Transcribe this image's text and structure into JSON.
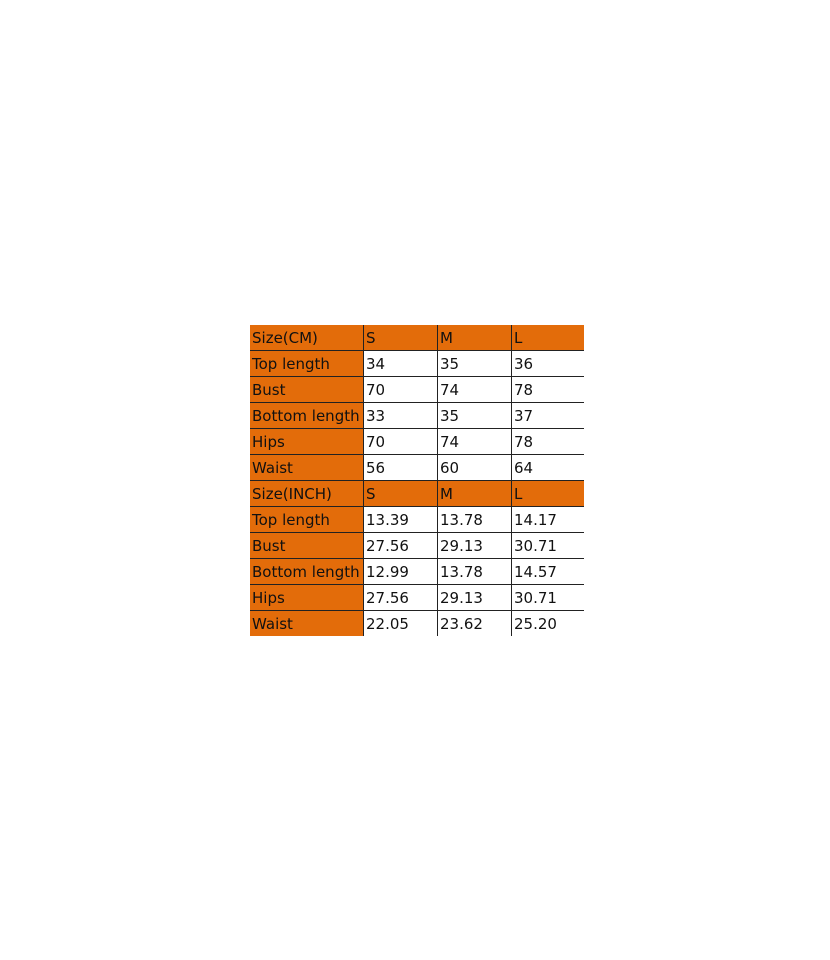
{
  "colors": {
    "header": "#E36C0A"
  },
  "sections": [
    {
      "header": [
        "Size(CM)",
        "S",
        "M",
        "L"
      ],
      "rows": [
        [
          "Top length",
          "34",
          "35",
          "36"
        ],
        [
          "Bust",
          "70",
          "74",
          "78"
        ],
        [
          "Bottom length",
          "33",
          "35",
          "37"
        ],
        [
          "Hips",
          "70",
          "74",
          "78"
        ],
        [
          "Waist",
          "56",
          "60",
          "64"
        ]
      ]
    },
    {
      "header": [
        "Size(INCH)",
        "S",
        "M",
        "L"
      ],
      "rows": [
        [
          "Top length",
          "13.39",
          "13.78",
          "14.17"
        ],
        [
          "Bust",
          "27.56",
          "29.13",
          "30.71"
        ],
        [
          "Bottom length",
          "12.99",
          "13.78",
          "14.57"
        ],
        [
          "Hips",
          "27.56",
          "29.13",
          "30.71"
        ],
        [
          "Waist",
          "22.05",
          "23.62",
          "25.20"
        ]
      ]
    }
  ]
}
